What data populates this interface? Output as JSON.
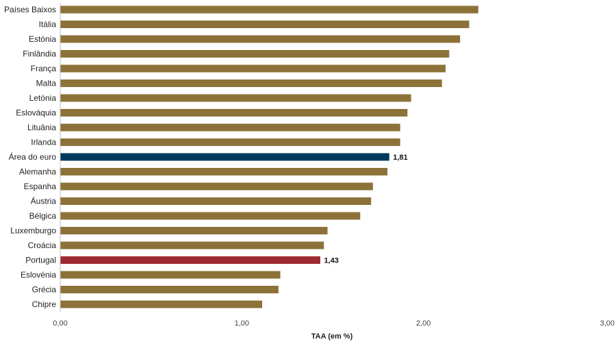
{
  "chart_data": {
    "type": "bar",
    "orientation": "horizontal",
    "xlabel": "TAA (em %)",
    "xlim": [
      0,
      3
    ],
    "ticks": [
      {
        "value": 0,
        "label": "0,00"
      },
      {
        "value": 1,
        "label": "1,00"
      },
      {
        "value": 2,
        "label": "2,00"
      },
      {
        "value": 3,
        "label": "3,00"
      }
    ],
    "grid": false,
    "colors": {
      "default": "#8c7239",
      "euro_area": "#003b5c",
      "portugal": "#9e2a32"
    },
    "bars": [
      {
        "category": "Países Baixos",
        "value": 2.3,
        "highlight": "default",
        "label": ""
      },
      {
        "category": "Itália",
        "value": 2.25,
        "highlight": "default",
        "label": ""
      },
      {
        "category": "Estónia",
        "value": 2.2,
        "highlight": "default",
        "label": ""
      },
      {
        "category": "Finlândia",
        "value": 2.14,
        "highlight": "default",
        "label": ""
      },
      {
        "category": "França",
        "value": 2.12,
        "highlight": "default",
        "label": ""
      },
      {
        "category": "Malta",
        "value": 2.1,
        "highlight": "default",
        "label": ""
      },
      {
        "category": "Letónia",
        "value": 1.93,
        "highlight": "default",
        "label": ""
      },
      {
        "category": "Eslováquia",
        "value": 1.91,
        "highlight": "default",
        "label": ""
      },
      {
        "category": "Lituânia",
        "value": 1.87,
        "highlight": "default",
        "label": ""
      },
      {
        "category": "Irlanda",
        "value": 1.87,
        "highlight": "default",
        "label": ""
      },
      {
        "category": "Área do euro",
        "value": 1.81,
        "highlight": "euro_area",
        "label": "1,81"
      },
      {
        "category": "Alemanha",
        "value": 1.8,
        "highlight": "default",
        "label": ""
      },
      {
        "category": "Espanha",
        "value": 1.72,
        "highlight": "default",
        "label": ""
      },
      {
        "category": "Áustria",
        "value": 1.71,
        "highlight": "default",
        "label": ""
      },
      {
        "category": "Bélgica",
        "value": 1.65,
        "highlight": "default",
        "label": ""
      },
      {
        "category": "Luxemburgo",
        "value": 1.47,
        "highlight": "default",
        "label": ""
      },
      {
        "category": "Croácia",
        "value": 1.45,
        "highlight": "default",
        "label": ""
      },
      {
        "category": "Portugal",
        "value": 1.43,
        "highlight": "portugal",
        "label": "1,43"
      },
      {
        "category": "Eslovénia",
        "value": 1.21,
        "highlight": "default",
        "label": ""
      },
      {
        "category": "Grécia",
        "value": 1.2,
        "highlight": "default",
        "label": ""
      },
      {
        "category": "Chipre",
        "value": 1.11,
        "highlight": "default",
        "label": ""
      }
    ]
  }
}
